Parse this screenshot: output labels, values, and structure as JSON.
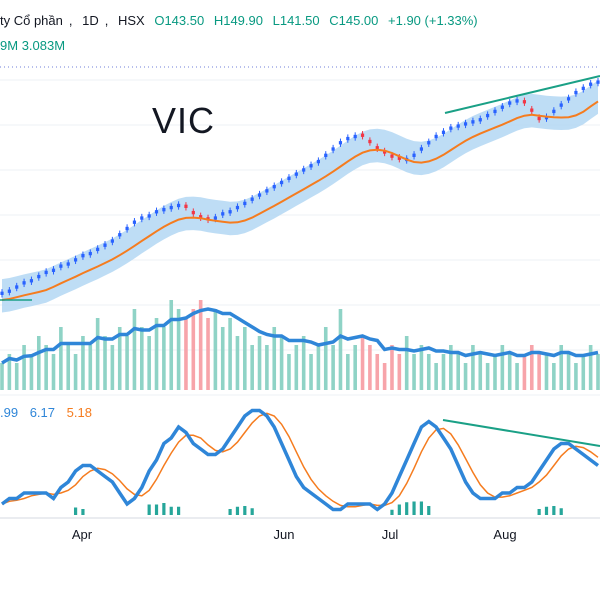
{
  "header": {
    "company": "ty Cổ phần",
    "interval": "1D",
    "exchange": "HSX",
    "open": "O143.50",
    "high": "H149.90",
    "low": "L141.50",
    "close": "C145.00",
    "change": "+1.90 (+1.33%)"
  },
  "volume_header": {
    "value1": "9M",
    "value2": "3.083M"
  },
  "macd_header": {
    "macd": ".99",
    "signal": "6.17",
    "hist": "5.18"
  },
  "symbol": "VIC",
  "colors": {
    "up": "#089981",
    "down": "#f23645",
    "ma": "#f57c1f",
    "band": "#b3d7f3",
    "volume_ma": "#2f86d8",
    "macd": "#2f86d8",
    "signal": "#f57c1f",
    "trendline": "#1aa086"
  },
  "chart_data": [
    {
      "type": "candlestick",
      "symbol": "VIC",
      "x_ticks": [
        "Apr",
        "Jun",
        "Jul",
        "Aug"
      ],
      "series": [
        {
          "name": "price",
          "comment": "approximate closing path read from the chart, start to end",
          "values": [
            44,
            45,
            47,
            49,
            50,
            52,
            54,
            55,
            57,
            58,
            60,
            62,
            63,
            65,
            67,
            69,
            72,
            75,
            78,
            80,
            81,
            83,
            84,
            85,
            86,
            84,
            81,
            79,
            78,
            80,
            82,
            83,
            85,
            87,
            89,
            91,
            93,
            95,
            97,
            99,
            101,
            103,
            105,
            107,
            110,
            113,
            116,
            118,
            119,
            118,
            115,
            112,
            110,
            108,
            107,
            108,
            110,
            113,
            116,
            119,
            121,
            123,
            124,
            125,
            126,
            127,
            129,
            131,
            133,
            135,
            136,
            134,
            130,
            126,
            128,
            131,
            134,
            137,
            140,
            142,
            144,
            145
          ]
        }
      ]
    },
    {
      "type": "histogram",
      "name": "volume",
      "values": [
        3,
        4,
        3,
        5,
        4,
        6,
        5,
        4,
        7,
        5,
        4,
        6,
        5,
        8,
        6,
        5,
        7,
        6,
        9,
        7,
        6,
        8,
        7,
        10,
        9,
        8,
        9,
        10,
        8,
        9,
        7,
        8,
        6,
        7,
        5,
        6,
        5,
        7,
        6,
        4,
        5,
        6,
        4,
        5,
        7,
        5,
        9,
        4,
        5,
        6,
        5,
        4,
        3,
        5,
        4,
        6,
        4,
        5,
        4,
        3,
        4,
        5,
        4,
        3,
        5,
        4,
        3,
        4,
        5,
        4,
        3,
        4,
        5,
        4,
        4,
        3,
        5,
        4,
        3,
        4,
        5,
        4
      ]
    },
    {
      "type": "line",
      "name": "MACD",
      "values": [
        2,
        3,
        3,
        4,
        4,
        4,
        4,
        3,
        5,
        6,
        8,
        9,
        9,
        8,
        7,
        6,
        4,
        2,
        3,
        5,
        8,
        10,
        13,
        14,
        16,
        15,
        13,
        12,
        11,
        11,
        12,
        14,
        16,
        18,
        19,
        19,
        18,
        16,
        13,
        10,
        7,
        5,
        4,
        3,
        2,
        1,
        1,
        2,
        2,
        2,
        2,
        1,
        2,
        4,
        7,
        10,
        13,
        16,
        17,
        16,
        14,
        12,
        9,
        6,
        4,
        3,
        3,
        3,
        4,
        4,
        5,
        5,
        6,
        8,
        10,
        12,
        13,
        13,
        12,
        11,
        10,
        9
      ]
    }
  ]
}
